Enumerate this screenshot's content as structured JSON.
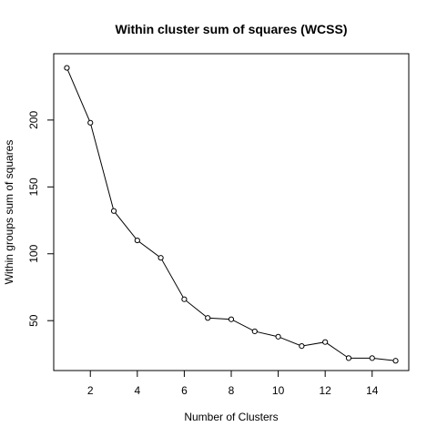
{
  "chart_data": {
    "type": "line",
    "title": "Within cluster sum of squares (WCSS)",
    "xlabel": "Number of Clusters",
    "ylabel": "Within groups sum of squares",
    "xlim": [
      0.44,
      15.56
    ],
    "ylim": [
      12.7,
      249.6
    ],
    "x_ticks": [
      2,
      4,
      6,
      8,
      10,
      12,
      14
    ],
    "y_ticks": [
      50,
      100,
      150,
      200
    ],
    "x": [
      1,
      2,
      3,
      4,
      5,
      6,
      7,
      8,
      9,
      10,
      11,
      12,
      13,
      14,
      15
    ],
    "series": [
      {
        "values": [
          239,
          198,
          132,
          110,
          97,
          66,
          52,
          51,
          42,
          38,
          31,
          34,
          22,
          22,
          20
        ],
        "color": "#000000",
        "marker": "open-circle"
      }
    ],
    "grid": false,
    "legend": "none"
  }
}
